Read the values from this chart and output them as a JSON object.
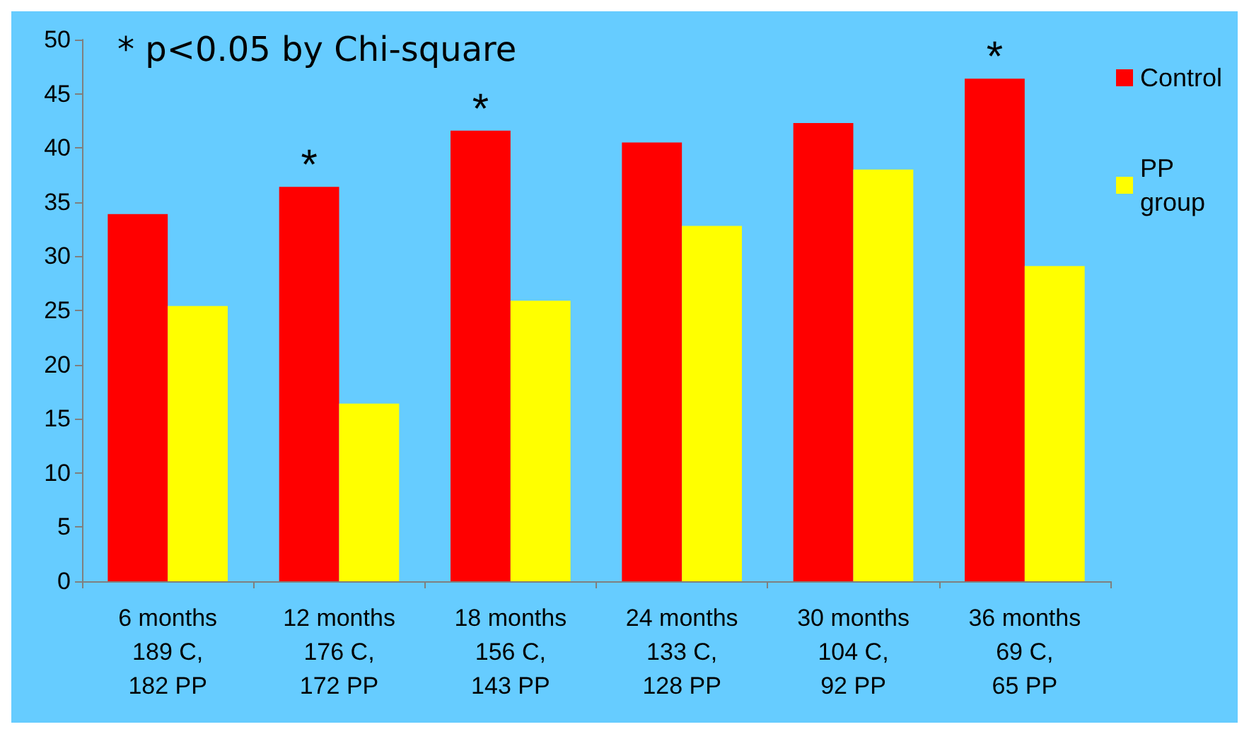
{
  "chart_data": {
    "type": "bar",
    "categories": [
      "6 months\n189 C,\n182 PP",
      "12 months\n176 C,\n172 PP",
      "18 months\n156 C,\n143 PP",
      "24 months\n133 C,\n128 PP",
      "30 months\n104 C,\n92 PP",
      "36 months\n69 C,\n65 PP"
    ],
    "series": [
      {
        "name": "Control",
        "color": "#ff0000",
        "values": [
          33.9,
          36.4,
          41.6,
          40.5,
          42.3,
          46.4
        ]
      },
      {
        "name": "PP group",
        "color": "#ffff00",
        "values": [
          25.4,
          16.4,
          25.9,
          32.8,
          38,
          29.1
        ]
      }
    ],
    "ylim": [
      0,
      50
    ],
    "yticks": [
      0,
      5,
      10,
      15,
      20,
      25,
      30,
      35,
      40,
      45,
      50
    ],
    "grid": false,
    "legend": "top right",
    "annotations": [
      "* p<0.05 by Chi-square",
      {
        "text": "*",
        "x": "12 months\n176 C,\n172 PP",
        "y": 36.4
      },
      {
        "text": "*",
        "x": "18 months\n156 C,\n143 PP",
        "y": 41.6
      },
      {
        "text": "*",
        "x": "36 months\n69 C,\n65 PP",
        "y": 46.4
      }
    ]
  }
}
